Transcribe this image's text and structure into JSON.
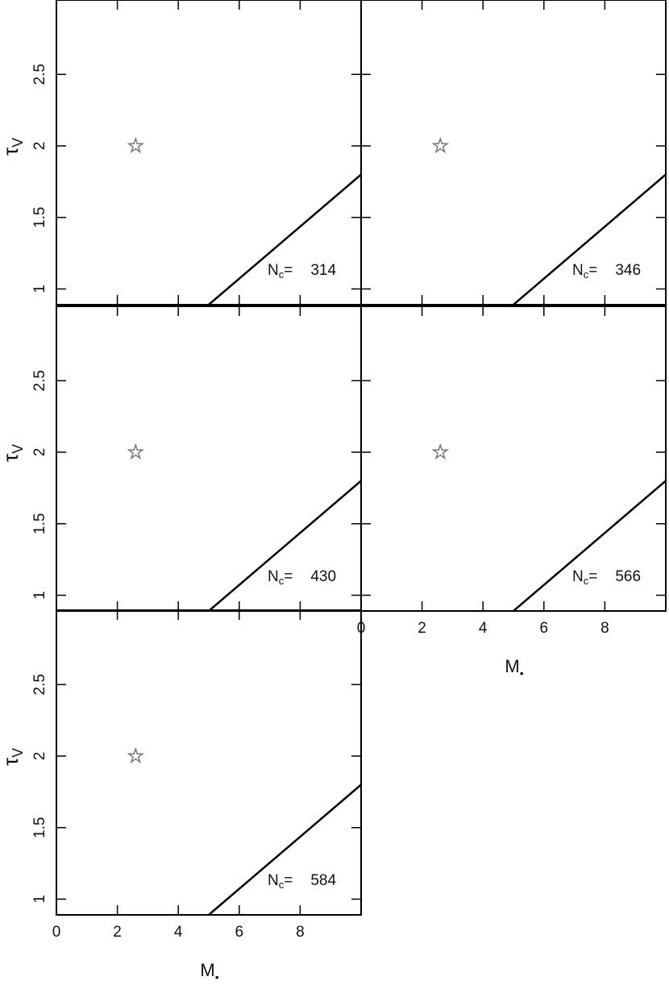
{
  "chart_data": [
    {
      "type": "scatter",
      "nc_symbol": "N",
      "nc_sub": "c",
      "nc_eq": "=",
      "nc": 314,
      "ylabel_symbol": "τ",
      "ylabel_sub": "V",
      "x": [
        2.6
      ],
      "y": [
        2.0
      ],
      "marker_color": "#777",
      "boundary": {
        "x": [
          5,
          10
        ],
        "y": [
          0.89,
          1.8
        ]
      },
      "xlim": [
        0,
        10
      ],
      "ylim": [
        0.89,
        3.02
      ],
      "xticks": [
        0,
        2,
        4,
        6,
        8
      ],
      "yticks": [
        1,
        1.5,
        2,
        2.5
      ],
      "show_xtick_labels": false,
      "show_ytick_labels": true
    },
    {
      "type": "scatter",
      "nc_symbol": "N",
      "nc_sub": "c",
      "nc_eq": "=",
      "nc": 346,
      "x": [
        2.6
      ],
      "y": [
        2.0
      ],
      "marker_color": "#777",
      "boundary": {
        "x": [
          5,
          10
        ],
        "y": [
          0.89,
          1.8
        ]
      },
      "xlim": [
        0,
        10
      ],
      "ylim": [
        0.89,
        3.02
      ],
      "xticks": [
        0,
        2,
        4,
        6,
        8
      ],
      "yticks": [
        1,
        1.5,
        2,
        2.5
      ],
      "show_xtick_labels": false,
      "show_ytick_labels": false
    },
    {
      "type": "scatter",
      "nc_symbol": "N",
      "nc_sub": "c",
      "nc_eq": "=",
      "nc": 430,
      "ylabel_symbol": "τ",
      "ylabel_sub": "V",
      "x": [
        2.6
      ],
      "y": [
        2.0
      ],
      "marker_color": "#777",
      "boundary": {
        "x": [
          5,
          10
        ],
        "y": [
          0.89,
          1.8
        ]
      },
      "xlim": [
        0,
        10
      ],
      "ylim": [
        0.89,
        3.02
      ],
      "xticks": [
        0,
        2,
        4,
        6,
        8
      ],
      "yticks": [
        1,
        1.5,
        2,
        2.5
      ],
      "show_xtick_labels": false,
      "show_ytick_labels": true
    },
    {
      "type": "scatter",
      "nc_symbol": "N",
      "nc_sub": "c",
      "nc_eq": "=",
      "nc": 566,
      "xlabel_symbol": "M",
      "xlabel_sub": "•",
      "x": [
        2.6
      ],
      "y": [
        2.0
      ],
      "marker_color": "#777",
      "boundary": {
        "x": [
          5,
          10
        ],
        "y": [
          0.89,
          1.8
        ]
      },
      "xlim": [
        0,
        10
      ],
      "ylim": [
        0.89,
        3.02
      ],
      "xticks": [
        0,
        2,
        4,
        6,
        8
      ],
      "yticks": [
        1,
        1.5,
        2,
        2.5
      ],
      "show_xtick_labels": true,
      "show_ytick_labels": false
    },
    {
      "type": "scatter",
      "nc_symbol": "N",
      "nc_sub": "c",
      "nc_eq": "=",
      "nc": 584,
      "ylabel_symbol": "τ",
      "ylabel_sub": "V",
      "xlabel_symbol": "M",
      "xlabel_sub": "•",
      "x": [
        2.6
      ],
      "y": [
        2.0
      ],
      "marker_color": "#777",
      "boundary": {
        "x": [
          5,
          10
        ],
        "y": [
          0.89,
          1.8
        ]
      },
      "xlim": [
        0,
        10
      ],
      "ylim": [
        0.89,
        3.02
      ],
      "xticks": [
        0,
        2,
        4,
        6,
        8
      ],
      "yticks": [
        1,
        1.5,
        2,
        2.5
      ],
      "show_xtick_labels": true,
      "show_ytick_labels": true
    }
  ]
}
